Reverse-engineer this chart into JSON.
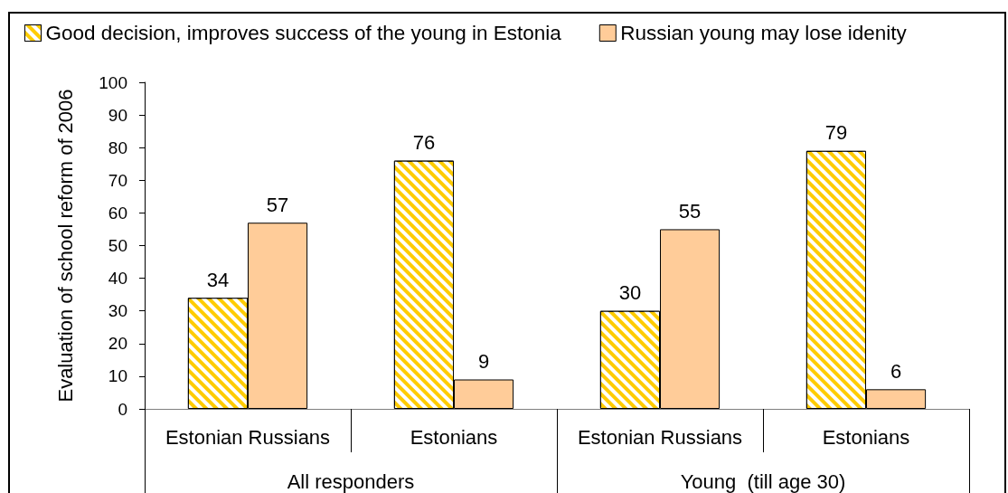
{
  "chart_data": {
    "type": "bar",
    "ylabel": "Evaluation of school reform of 2006",
    "categories": [
      "Estonian Russians",
      "Estonians",
      "Estonian Russians",
      "Estonians"
    ],
    "series": [
      {
        "name": "Good decision, improves success of the young in Estonia",
        "color": "#ffcc00",
        "values": [
          34,
          76,
          30,
          79
        ]
      },
      {
        "name": "Russian young may lose idenity",
        "color": "#ffcc99",
        "values": [
          57,
          9,
          55,
          6
        ]
      }
    ],
    "ylim": [
      0,
      100
    ],
    "yticks": [
      0,
      10,
      20,
      30,
      40,
      50,
      60,
      70,
      80,
      90,
      100
    ],
    "data_labels": true,
    "legend": "top left",
    "annotations": [
      "All responders",
      "Young  (till age 30)"
    ]
  }
}
